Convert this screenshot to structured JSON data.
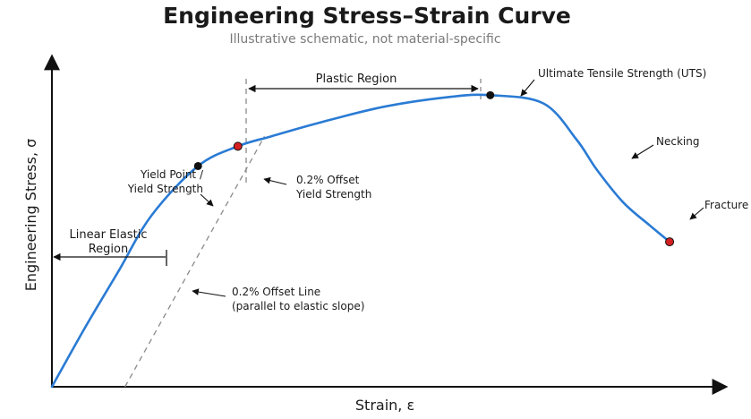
{
  "colors": {
    "curve": "#2a7bd4",
    "axis": "#111111",
    "dashed": "#8a8a8a",
    "yield_point": "#111111",
    "offset_point": "#d42020",
    "uts_point": "#111111",
    "fracture_point": "#d42020"
  },
  "chart_data": {
    "type": "line",
    "title": "Engineering Stress–Strain Curve",
    "subtitle": "Illustrative schematic, not material-specific",
    "xlabel": "Strain, ε",
    "ylabel": "Engineering Stress, σ",
    "xlim": [
      0,
      10
    ],
    "ylim": [
      0,
      10
    ],
    "grid": false,
    "series": [
      {
        "x": [
          0,
          0.5,
          1.0,
          1.5,
          2.2,
          2.8,
          3.3,
          4.0,
          5.0,
          6.0,
          6.6,
          7.4,
          7.9,
          8.2,
          8.6,
          9.0,
          9.3
        ],
        "y": [
          0,
          1.8,
          3.5,
          5.2,
          6.7,
          7.3,
          7.6,
          8.0,
          8.5,
          8.8,
          8.85,
          8.6,
          7.5,
          6.6,
          5.6,
          4.9,
          4.4
        ]
      }
    ],
    "offset_line": {
      "x": [
        1.1,
        3.2
      ],
      "y": [
        0,
        7.6
      ]
    },
    "annotations": [
      {
        "id": "yield_point",
        "line1": "Yield Point /",
        "line2": "Yield Strength",
        "x": 2.2,
        "y": 6.7
      },
      {
        "id": "offset_yield",
        "line1": "0.2% Offset",
        "line2": "Yield Strength",
        "x": 2.8,
        "y": 7.3
      },
      {
        "id": "uts",
        "line1": "Ultimate Tensile Strength (UTS)",
        "x": 6.6,
        "y": 8.85
      },
      {
        "id": "necking",
        "line1": "Necking",
        "x": 8.2,
        "y": 6.6
      },
      {
        "id": "fracture",
        "line1": "Fracture",
        "x": 9.3,
        "y": 4.4
      },
      {
        "id": "offset_line",
        "line1": "0.2% Offset Line",
        "line2": "(parallel to elastic slope)"
      },
      {
        "id": "linear_region",
        "line1": "Linear Elastic",
        "line2": "Region"
      },
      {
        "id": "plastic_region",
        "line1": "Plastic Region"
      }
    ]
  }
}
